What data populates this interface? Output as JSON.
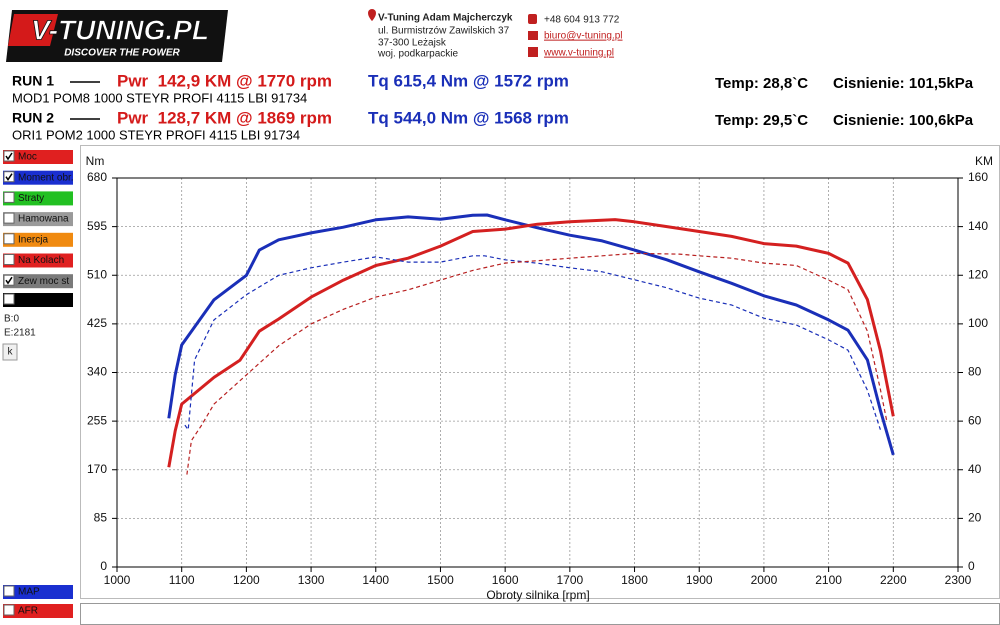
{
  "header": {
    "logo_title": "V-TUNING.PL",
    "logo_tagline": "DISCOVER THE POWER",
    "company": "V-Tuning Adam Majcherczyk",
    "address": [
      "ul. Burmistrzów Zawilskich 37",
      "37-300 Leżajsk",
      "woj. podkarpackie"
    ],
    "phone": "+48 604 913 772",
    "email": "biuro@v-tuning.pl",
    "website": "www.v-tuning.pl"
  },
  "runs": [
    {
      "label": "RUN 1",
      "power": "Pwr  142,9 KM @ 1770 rpm",
      "torque": "Tq 615,4 Nm @ 1572 rpm",
      "temp": "Temp: 28,8`C",
      "pressure": "Cisnienie: 101,5kPa",
      "description": "MOD1 POM8 1000 STEYR PROFI 4115 LBI 91734"
    },
    {
      "label": "RUN 2",
      "power": "Pwr  128,7 KM @ 1869 rpm",
      "torque": "Tq 544,0 Nm @ 1568 rpm",
      "temp": "Temp: 29,5`C",
      "pressure": "Cisnienie: 100,6kPa",
      "description": "ORI1 POM2 1000 STEYR PROFI 4115 LBI 91734"
    }
  ],
  "sidebar": {
    "items": [
      {
        "label": "Moc",
        "color": "#e02020",
        "checked": true
      },
      {
        "label": "Moment obr.",
        "color": "#1a2fd0",
        "checked": true
      },
      {
        "label": "Straty",
        "color": "#22c022",
        "checked": false
      },
      {
        "label": "Hamowana",
        "color": "#9a9a9a",
        "checked": false
      },
      {
        "label": "Inercja",
        "color": "#f08a10",
        "checked": false
      },
      {
        "label": "Na Kolach",
        "color": "#e02020",
        "checked": false
      },
      {
        "label": "Zew moc st",
        "color": "#7a7a7a",
        "checked": true
      }
    ],
    "b_value": "B:0",
    "e_value": "E:2181",
    "button": "k",
    "bottom_items": [
      {
        "label": "MAP",
        "color": "#1a2fd0",
        "checked": false
      },
      {
        "label": "AFR",
        "color": "#e02020",
        "checked": false
      }
    ]
  },
  "chart_data": {
    "type": "line",
    "x_label": "Obroty silnika [rpm]",
    "y_label": "Nm",
    "y2_label": "KM",
    "xlim": [
      1000,
      2300
    ],
    "xticks": [
      1000,
      1100,
      1200,
      1300,
      1400,
      1500,
      1600,
      1700,
      1800,
      1900,
      2000,
      2100,
      2200,
      2300
    ],
    "ylim": [
      0,
      680
    ],
    "yticks": [
      0,
      85,
      170,
      255,
      340,
      425,
      510,
      595,
      680
    ],
    "y2lim": [
      0,
      160
    ],
    "y2ticks": [
      0,
      20,
      40,
      60,
      80,
      100,
      120,
      140,
      160
    ],
    "grid": true,
    "series": [
      {
        "color": "#1a2fb8",
        "dashed": false,
        "axis": "y",
        "x": [
          1080,
          1090,
          1100,
          1150,
          1200,
          1220,
          1250,
          1300,
          1350,
          1400,
          1450,
          1500,
          1550,
          1572,
          1600,
          1650,
          1700,
          1750,
          1800,
          1850,
          1900,
          1950,
          2000,
          2050,
          2100,
          2130,
          2160,
          2180,
          2200
        ],
        "values": [
          260,
          336,
          388,
          467,
          510,
          554,
          572,
          584,
          594,
          607,
          612,
          608,
          615,
          615.4,
          607,
          593,
          580,
          570,
          554,
          537,
          516,
          496,
          474,
          458,
          432,
          414,
          362,
          274,
          196
        ]
      },
      {
        "color": "#d42020",
        "dashed": false,
        "axis": "y2",
        "x": [
          1080,
          1090,
          1100,
          1150,
          1190,
          1220,
          1250,
          1300,
          1350,
          1400,
          1450,
          1500,
          1550,
          1600,
          1650,
          1700,
          1770,
          1800,
          1850,
          1900,
          1950,
          2000,
          2050,
          2100,
          2130,
          2160,
          2180,
          2200
        ],
        "values": [
          41,
          56,
          67,
          78,
          85,
          97,
          102,
          111,
          118,
          124,
          127,
          132,
          138,
          139,
          141,
          142,
          142.9,
          142,
          140,
          138,
          136,
          133,
          132,
          129,
          125,
          110,
          89,
          62
        ]
      },
      {
        "color": "#1a2fb8",
        "dashed": true,
        "axis": "y",
        "x": [
          1105,
          1110,
          1120,
          1150,
          1200,
          1250,
          1300,
          1350,
          1400,
          1450,
          1500,
          1550,
          1568,
          1600,
          1650,
          1700,
          1750,
          1800,
          1850,
          1900,
          1950,
          2000,
          2050,
          2100,
          2130,
          2160,
          2180
        ],
        "values": [
          248,
          240,
          362,
          432,
          476,
          510,
          523,
          533,
          542,
          533,
          533,
          544,
          544,
          537,
          531,
          523,
          516,
          502,
          488,
          470,
          458,
          435,
          423,
          397,
          379,
          309,
          240
        ]
      },
      {
        "color": "#b82020",
        "dashed": true,
        "axis": "y2",
        "x": [
          1108,
          1115,
          1130,
          1150,
          1200,
          1250,
          1300,
          1350,
          1400,
          1450,
          1500,
          1550,
          1600,
          1650,
          1700,
          1750,
          1800,
          1869,
          1900,
          1950,
          2000,
          2050,
          2100,
          2130,
          2160,
          2180,
          2190
        ],
        "values": [
          38,
          52,
          58,
          67,
          79,
          91,
          100,
          106,
          111,
          114,
          118,
          122,
          125,
          126,
          127,
          128,
          129,
          128.7,
          128,
          127,
          125,
          124,
          118,
          114,
          97,
          73,
          60
        ]
      }
    ]
  }
}
